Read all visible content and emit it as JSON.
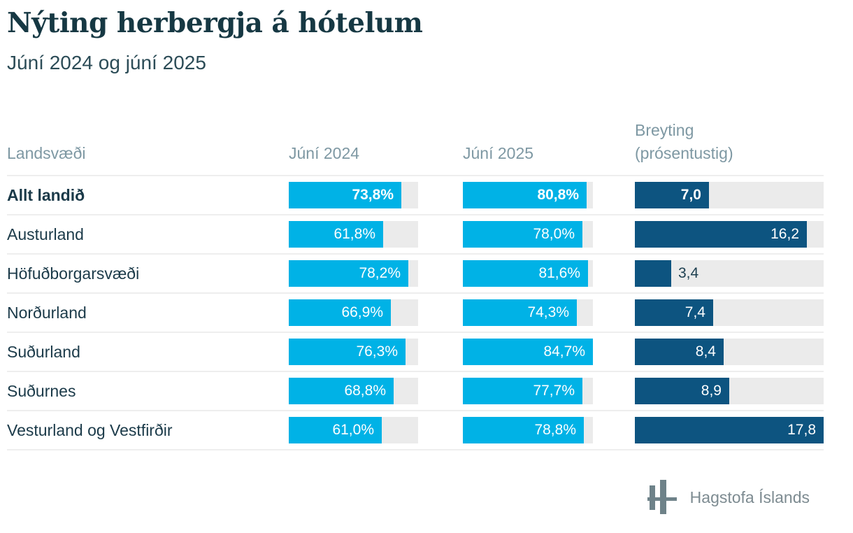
{
  "title": "Nýting herbergja á hótelum",
  "subtitle": "Júní 2024 og júní 2025",
  "table_header": {
    "region": "Landsvæði",
    "jun2024": "Júní 2024",
    "jun2025": "Júní 2025",
    "change_line1": "Breyting",
    "change_line2": "(prósentustig)"
  },
  "chart_data": {
    "type": "bar",
    "title": "Nýting herbergja á hótelum",
    "subtitle": "Júní 2024 og júní 2025",
    "categories": [
      "Allt landið",
      "Austurland",
      "Höfuðborgarsvæði",
      "Norðurland",
      "Suðurland",
      "Suðurnes",
      "Vesturland og Vestfirðir"
    ],
    "total_row_index": 0,
    "series": [
      {
        "name": "Júní 2024",
        "unit": "%",
        "color": "#00b2e6",
        "values": [
          73.8,
          61.8,
          78.2,
          66.9,
          76.3,
          68.8,
          61.0
        ],
        "labels": [
          "73,8%",
          "61,8%",
          "78,2%",
          "66,9%",
          "76,3%",
          "68,8%",
          "61,0%"
        ]
      },
      {
        "name": "Júní 2025",
        "unit": "%",
        "color": "#00b2e6",
        "values": [
          80.8,
          78.0,
          81.6,
          74.3,
          84.7,
          77.7,
          78.8
        ],
        "labels": [
          "80,8%",
          "78,0%",
          "81,6%",
          "74,3%",
          "84,7%",
          "77,7%",
          "78,8%"
        ]
      },
      {
        "name": "Breyting (prósentustig)",
        "unit": "prósentustig",
        "color": "#0d5480",
        "values": [
          7.0,
          16.2,
          3.4,
          7.4,
          8.4,
          8.9,
          17.8
        ],
        "labels": [
          "7,0",
          "16,2",
          "3,4",
          "7,4",
          "8,4",
          "8,9",
          "17,8"
        ]
      }
    ],
    "layout_hints": {
      "bars_scaled_to_column_group_max": true,
      "percent_columns_shared_max": 84.7,
      "change_column_max": 17.8,
      "track_color": "#ebebeb",
      "legend": "none",
      "grid": "off"
    }
  },
  "footer": {
    "org_name": "Hagstofa Íslands"
  },
  "colors": {
    "accent_cyan": "#00b2e6",
    "accent_navy": "#0d5480",
    "track_gray": "#ebebeb",
    "title_text": "#163843",
    "header_text": "#7e98a3",
    "row_label_text": "#1b3a49",
    "footer_text": "#7d8b91"
  }
}
